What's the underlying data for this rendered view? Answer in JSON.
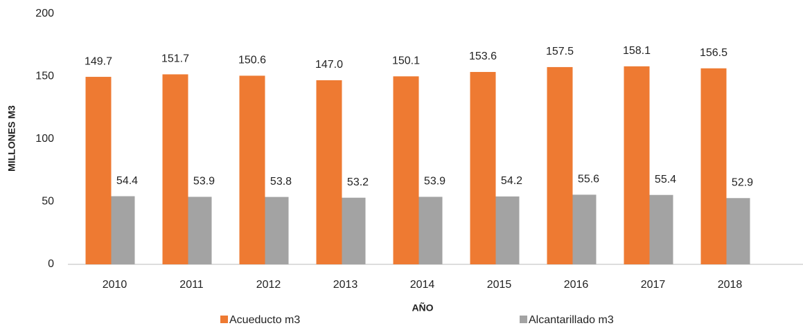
{
  "chart_data": {
    "type": "bar",
    "categories": [
      "2010",
      "2011",
      "2012",
      "2013",
      "2014",
      "2015",
      "2016",
      "2017",
      "2018"
    ],
    "series": [
      {
        "name": "Acueducto m3",
        "color": "#ee7a32",
        "values": [
          149.7,
          151.7,
          150.6,
          147.0,
          150.1,
          153.6,
          157.5,
          158.1,
          156.5
        ],
        "value_labels": [
          "149.7",
          "151.7",
          "150.6",
          "147.0",
          "150.1",
          "153.6",
          "157.5",
          "158.1",
          "156.5"
        ]
      },
      {
        "name": "Alcantarillado m3",
        "color": "#a3a3a3",
        "values": [
          54.4,
          53.9,
          53.8,
          53.2,
          53.9,
          54.2,
          55.6,
          55.4,
          52.9
        ],
        "value_labels": [
          "54.4",
          "53.9",
          "53.8",
          "53.2",
          "53.9",
          "54.2",
          "55.6",
          "55.4",
          "52.9"
        ]
      }
    ],
    "x_label": "AÑO",
    "y_label": "MILLONES M3",
    "ylim": [
      0,
      200
    ],
    "yticks": [
      0,
      50,
      100,
      150,
      200
    ],
    "grid": false,
    "legend": "bottom"
  }
}
